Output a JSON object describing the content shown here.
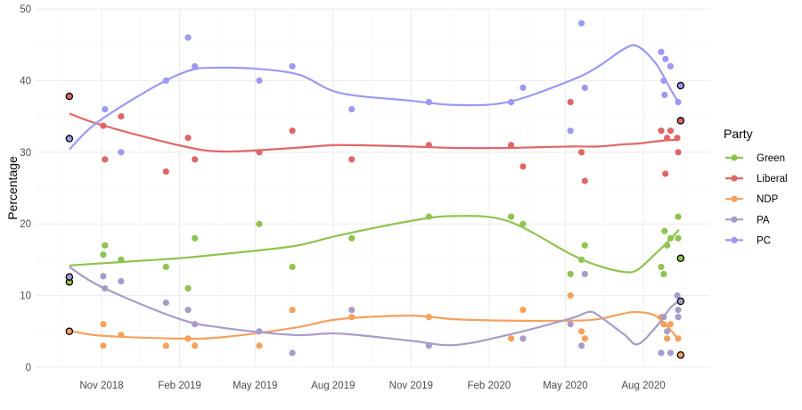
{
  "chart_data": {
    "type": "scatter",
    "title": "",
    "xlabel": "",
    "ylabel": "Percentage",
    "ylim": [
      0,
      50
    ],
    "y_ticks": [
      "0",
      "10",
      "20",
      "30",
      "40",
      "50"
    ],
    "x_ticks": [
      {
        "date": "2018-11-01",
        "label": "Nov 2018"
      },
      {
        "date": "2019-02-01",
        "label": "Feb 2019"
      },
      {
        "date": "2019-05-01",
        "label": "May 2019"
      },
      {
        "date": "2019-08-01",
        "label": "Aug 2019"
      },
      {
        "date": "2019-11-01",
        "label": "Nov 2019"
      },
      {
        "date": "2020-02-01",
        "label": "Feb 2020"
      },
      {
        "date": "2020-05-01",
        "label": "May 2020"
      },
      {
        "date": "2020-08-01",
        "label": "Aug 2020"
      }
    ],
    "xlim": [
      "2018-09-10",
      "2020-10-15"
    ],
    "grid": true,
    "legend": {
      "title": "Party",
      "placement": "right"
    },
    "series": [
      {
        "name": "Green",
        "color": "#8fc34f",
        "results": [
          [
            "2018-09-24",
            11.9
          ],
          [
            "2020-09-14",
            15.2
          ]
        ],
        "points": [
          [
            "2018-11-03",
            15.7
          ],
          [
            "2018-11-05",
            17
          ],
          [
            "2018-11-24",
            15
          ],
          [
            "2019-01-16",
            14
          ],
          [
            "2019-02-11",
            11
          ],
          [
            "2019-02-19",
            18
          ],
          [
            "2019-05-06",
            20
          ],
          [
            "2019-06-14",
            14
          ],
          [
            "2019-08-23",
            18
          ],
          [
            "2019-11-22",
            21
          ],
          [
            "2020-02-27",
            21
          ],
          [
            "2020-03-12",
            20
          ],
          [
            "2020-05-07",
            13
          ],
          [
            "2020-05-20",
            15
          ],
          [
            "2020-05-24",
            17
          ],
          [
            "2020-08-22",
            14
          ],
          [
            "2020-08-25",
            13
          ],
          [
            "2020-08-26",
            19
          ],
          [
            "2020-08-29",
            17
          ],
          [
            "2020-09-02",
            18
          ],
          [
            "2020-09-11",
            21
          ],
          [
            "2020-09-11",
            18
          ]
        ],
        "trend": [
          [
            "2018-09-24",
            14.2
          ],
          [
            "2018-11-01",
            14.5
          ],
          [
            "2019-01-30",
            15.2
          ],
          [
            "2019-03-24",
            15.8
          ],
          [
            "2019-06-16",
            16.9
          ],
          [
            "2019-08-08",
            18.4
          ],
          [
            "2019-10-31",
            20.4
          ],
          [
            "2019-12-22",
            21.1
          ],
          [
            "2020-02-23",
            20.4
          ],
          [
            "2020-05-07",
            15.8
          ],
          [
            "2020-06-08",
            14.2
          ],
          [
            "2020-07-09",
            13.3
          ],
          [
            "2020-07-25",
            13.6
          ],
          [
            "2020-08-15",
            15.8
          ],
          [
            "2020-09-02",
            17.9
          ],
          [
            "2020-09-12",
            19.2
          ]
        ]
      },
      {
        "name": "Liberal",
        "color": "#e06666",
        "results": [
          [
            "2018-09-24",
            37.8
          ],
          [
            "2020-09-14",
            34.4
          ]
        ],
        "points": [
          [
            "2018-11-03",
            33.7
          ],
          [
            "2018-11-05",
            29
          ],
          [
            "2018-11-24",
            35
          ],
          [
            "2019-01-16",
            27.3
          ],
          [
            "2019-02-11",
            32
          ],
          [
            "2019-02-19",
            29
          ],
          [
            "2019-05-06",
            30
          ],
          [
            "2019-06-14",
            33
          ],
          [
            "2019-08-23",
            29
          ],
          [
            "2019-11-22",
            31
          ],
          [
            "2020-02-27",
            31
          ],
          [
            "2020-03-12",
            28
          ],
          [
            "2020-05-07",
            37
          ],
          [
            "2020-05-20",
            30
          ],
          [
            "2020-05-24",
            26
          ],
          [
            "2020-08-22",
            33
          ],
          [
            "2020-08-29",
            32
          ],
          [
            "2020-08-27",
            27
          ],
          [
            "2020-09-02",
            33
          ],
          [
            "2020-09-10",
            32
          ],
          [
            "2020-09-11",
            30
          ]
        ],
        "trend": [
          [
            "2018-09-24",
            35.4
          ],
          [
            "2018-11-01",
            33.8
          ],
          [
            "2019-01-30",
            31
          ],
          [
            "2019-03-24",
            30.1
          ],
          [
            "2019-06-16",
            30.6
          ],
          [
            "2019-08-08",
            31
          ],
          [
            "2019-10-31",
            30.8
          ],
          [
            "2019-12-22",
            30.6
          ],
          [
            "2020-02-23",
            30.6
          ],
          [
            "2020-05-07",
            30.8
          ],
          [
            "2020-06-08",
            30.8
          ],
          [
            "2020-07-09",
            31.1
          ],
          [
            "2020-07-25",
            31.2
          ],
          [
            "2020-08-15",
            31.5
          ],
          [
            "2020-09-02",
            31.7
          ],
          [
            "2020-09-12",
            31.7
          ]
        ]
      },
      {
        "name": "NDP",
        "color": "#f4a15d",
        "results": [
          [
            "2018-09-24",
            5.0
          ],
          [
            "2020-09-14",
            1.7
          ]
        ],
        "points": [
          [
            "2018-11-03",
            6
          ],
          [
            "2018-11-03",
            3
          ],
          [
            "2018-11-24",
            4.5
          ],
          [
            "2019-01-16",
            3
          ],
          [
            "2019-02-11",
            4
          ],
          [
            "2019-02-19",
            3
          ],
          [
            "2019-05-06",
            3
          ],
          [
            "2019-06-14",
            8
          ],
          [
            "2019-08-23",
            7
          ],
          [
            "2019-11-22",
            7
          ],
          [
            "2020-02-27",
            4
          ],
          [
            "2020-03-12",
            8
          ],
          [
            "2020-05-07",
            10
          ],
          [
            "2020-05-20",
            5
          ],
          [
            "2020-05-24",
            4
          ],
          [
            "2020-08-22",
            7
          ],
          [
            "2020-08-25",
            6
          ],
          [
            "2020-08-29",
            4
          ],
          [
            "2020-09-02",
            6
          ],
          [
            "2020-09-11",
            4
          ]
        ],
        "trend": [
          [
            "2018-09-24",
            5.1
          ],
          [
            "2018-11-01",
            4.4
          ],
          [
            "2019-01-30",
            4
          ],
          [
            "2019-03-24",
            4.2
          ],
          [
            "2019-06-16",
            5.5
          ],
          [
            "2019-08-08",
            6.7
          ],
          [
            "2019-10-31",
            7.2
          ],
          [
            "2019-12-22",
            6.7
          ],
          [
            "2020-02-23",
            6.5
          ],
          [
            "2020-05-07",
            6.5
          ],
          [
            "2020-06-08",
            6.7
          ],
          [
            "2020-07-09",
            7.5
          ],
          [
            "2020-07-25",
            7.7
          ],
          [
            "2020-08-15",
            7.2
          ],
          [
            "2020-09-02",
            5.2
          ],
          [
            "2020-09-12",
            3.7
          ]
        ]
      },
      {
        "name": "PA",
        "color": "#a99bc9",
        "results": [
          [
            "2018-09-24",
            12.6
          ],
          [
            "2020-09-14",
            9.2
          ]
        ],
        "points": [
          [
            "2018-11-03",
            12.7
          ],
          [
            "2018-11-05",
            11
          ],
          [
            "2018-11-24",
            12
          ],
          [
            "2019-01-16",
            9
          ],
          [
            "2019-02-11",
            8
          ],
          [
            "2019-02-19",
            6
          ],
          [
            "2019-05-06",
            5
          ],
          [
            "2019-06-14",
            2
          ],
          [
            "2019-08-23",
            8
          ],
          [
            "2019-11-22",
            3
          ],
          [
            "2020-03-12",
            4
          ],
          [
            "2020-05-07",
            6
          ],
          [
            "2020-05-20",
            3
          ],
          [
            "2020-05-24",
            13
          ],
          [
            "2020-08-22",
            2
          ],
          [
            "2020-08-25",
            7
          ],
          [
            "2020-08-29",
            5
          ],
          [
            "2020-09-02",
            2
          ],
          [
            "2020-09-10",
            10
          ],
          [
            "2020-09-11",
            7
          ],
          [
            "2020-09-11",
            8
          ]
        ],
        "trend": [
          [
            "2018-09-24",
            14
          ],
          [
            "2018-11-01",
            11.2
          ],
          [
            "2019-01-30",
            6.8
          ],
          [
            "2019-03-24",
            5.5
          ],
          [
            "2019-06-16",
            4.5
          ],
          [
            "2019-08-08",
            4.7
          ],
          [
            "2019-10-31",
            3.7
          ],
          [
            "2019-12-22",
            3.1
          ],
          [
            "2020-02-23",
            4.5
          ],
          [
            "2020-05-07",
            6.8
          ],
          [
            "2020-05-28",
            7.7
          ],
          [
            "2020-06-08",
            7.3
          ],
          [
            "2020-07-09",
            4.6
          ],
          [
            "2020-07-25",
            3.2
          ],
          [
            "2020-08-15",
            5.5
          ],
          [
            "2020-09-02",
            8.3
          ],
          [
            "2020-09-12",
            9.2
          ]
        ]
      },
      {
        "name": "PC",
        "color": "#9b99f2",
        "results": [
          [
            "2018-09-24",
            31.9
          ],
          [
            "2020-09-14",
            39.3
          ]
        ],
        "points": [
          [
            "2018-11-05",
            36
          ],
          [
            "2018-11-24",
            30
          ],
          [
            "2019-01-16",
            40
          ],
          [
            "2019-02-11",
            46
          ],
          [
            "2019-02-19",
            42
          ],
          [
            "2019-05-06",
            40
          ],
          [
            "2019-06-14",
            42
          ],
          [
            "2019-08-23",
            36
          ],
          [
            "2019-11-22",
            37
          ],
          [
            "2020-02-27",
            37
          ],
          [
            "2020-03-12",
            39
          ],
          [
            "2020-05-07",
            33
          ],
          [
            "2020-05-20",
            48
          ],
          [
            "2020-05-24",
            39
          ],
          [
            "2020-08-22",
            44
          ],
          [
            "2020-08-25",
            40
          ],
          [
            "2020-08-26",
            38
          ],
          [
            "2020-08-27",
            43
          ],
          [
            "2020-09-02",
            42
          ],
          [
            "2020-09-11",
            37
          ]
        ],
        "trend": [
          [
            "2018-09-24",
            30.4
          ],
          [
            "2018-11-01",
            34.6
          ],
          [
            "2019-01-30",
            40.8
          ],
          [
            "2019-03-24",
            41.8
          ],
          [
            "2019-06-16",
            41
          ],
          [
            "2019-08-08",
            38.3
          ],
          [
            "2019-10-31",
            37.2
          ],
          [
            "2019-12-22",
            36.6
          ],
          [
            "2020-02-23",
            37
          ],
          [
            "2020-05-07",
            40
          ],
          [
            "2020-06-08",
            41.9
          ],
          [
            "2020-07-09",
            44.4
          ],
          [
            "2020-07-25",
            44.8
          ],
          [
            "2020-08-15",
            42.5
          ],
          [
            "2020-09-02",
            38.8
          ],
          [
            "2020-09-12",
            36.8
          ]
        ]
      }
    ]
  }
}
